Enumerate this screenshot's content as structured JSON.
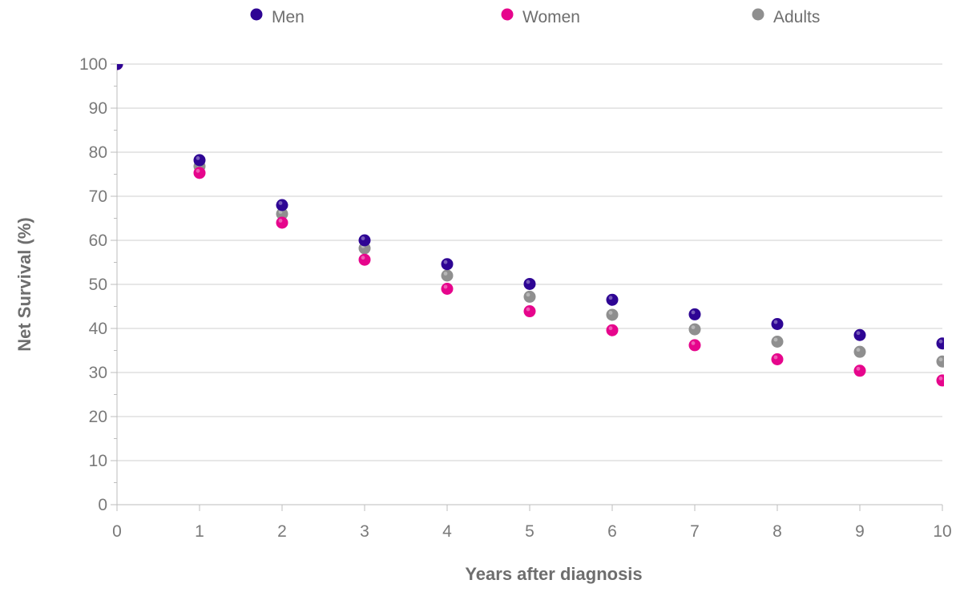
{
  "chart_data": {
    "type": "scatter",
    "title": "",
    "xlabel": "Years after diagnosis",
    "ylabel": "Net Survival (%)",
    "xlim": [
      0,
      10
    ],
    "ylim": [
      0,
      100
    ],
    "x_ticks": [
      0,
      1,
      2,
      3,
      4,
      5,
      6,
      7,
      8,
      9,
      10
    ],
    "y_ticks": [
      0,
      10,
      20,
      30,
      40,
      50,
      60,
      70,
      80,
      90,
      100
    ],
    "grid": "horizontal",
    "legend_position": "top",
    "x": [
      0,
      1,
      2,
      3,
      4,
      5,
      6,
      7,
      8,
      9,
      10
    ],
    "series": [
      {
        "name": "Adults",
        "color": "#8f8f8f",
        "values": [
          100,
          76.8,
          66,
          58.2,
          52,
          47.2,
          43.1,
          39.8,
          37,
          34.7,
          32.5
        ]
      },
      {
        "name": "Women",
        "color": "#e6058c",
        "values": [
          100,
          75.3,
          64,
          55.6,
          49,
          43.9,
          39.6,
          36.2,
          33,
          30.4,
          28.2
        ]
      },
      {
        "name": "Men",
        "color": "#2e0594",
        "values": [
          100,
          78.2,
          68,
          60,
          54.6,
          50.1,
          46.5,
          43.2,
          41,
          38.5,
          36.6
        ]
      }
    ],
    "legend": [
      {
        "name": "Men",
        "color": "#2e0594"
      },
      {
        "name": "Women",
        "color": "#e6058c"
      },
      {
        "name": "Adults",
        "color": "#8f8f8f"
      }
    ]
  }
}
